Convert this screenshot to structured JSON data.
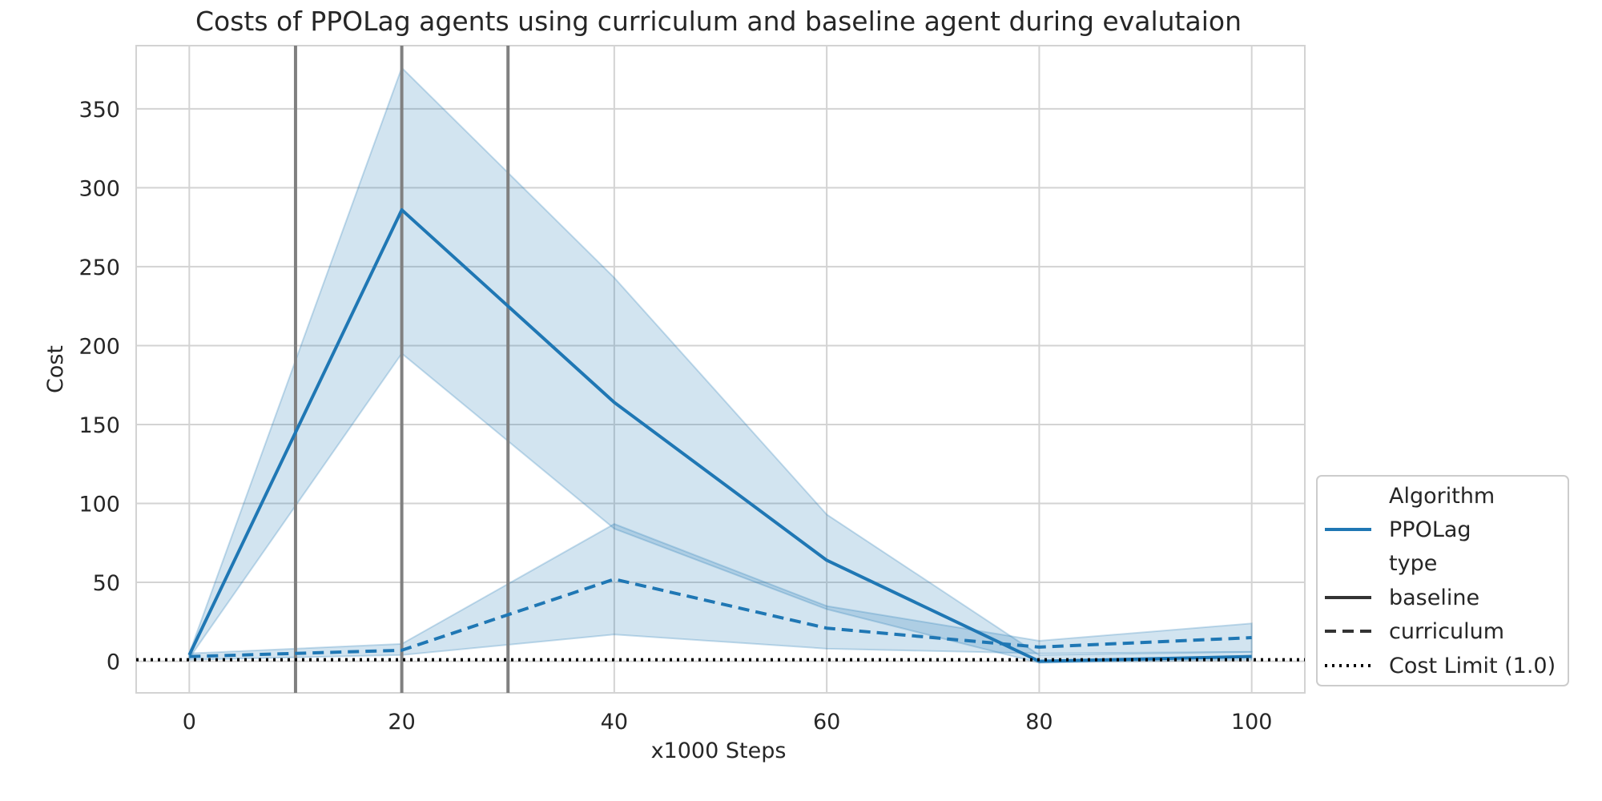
{
  "chart_data": {
    "type": "line",
    "title": "Costs of PPOLag agents using curriculum and baseline agent during evalutaion",
    "xlabel": "x1000 Steps",
    "ylabel": "Cost",
    "xlim": [
      -5,
      105
    ],
    "ylim": [
      -20,
      390
    ],
    "xticks": [
      0,
      20,
      40,
      60,
      80,
      100
    ],
    "yticks": [
      0,
      50,
      100,
      150,
      200,
      250,
      300,
      350
    ],
    "grid": true,
    "legend_placement": "lower-right",
    "colors": {
      "series": "#1f77b4",
      "band": "#1f77b4",
      "vline": "#808080",
      "limit": "#000000",
      "legend_key": "#333333"
    },
    "series": [
      {
        "algorithm": "PPOLag",
        "type": "baseline",
        "style": "solid",
        "x": [
          0,
          20,
          40,
          60,
          80,
          100
        ],
        "y": [
          4,
          286,
          164,
          64,
          0,
          3
        ],
        "lower": [
          2,
          195,
          84,
          33,
          -1,
          1
        ],
        "upper": [
          5,
          376,
          243,
          93,
          4,
          6
        ]
      },
      {
        "algorithm": "PPOLag",
        "type": "curriculum",
        "style": "dashed",
        "x": [
          0,
          20,
          40,
          60,
          80,
          100
        ],
        "y": [
          3,
          7,
          52,
          21,
          9,
          15
        ],
        "lower": [
          1,
          4,
          17,
          8,
          5,
          6
        ],
        "upper": [
          5,
          11,
          87,
          35,
          13,
          24
        ]
      }
    ],
    "reference_lines": {
      "vertical_x": [
        10,
        20,
        30
      ],
      "cost_limit_y": 1.0
    },
    "legend": {
      "header_algorithm": "Algorithm",
      "algorithm_entry": "PPOLag",
      "header_type": "type",
      "type_entries": [
        "baseline",
        "curriculum"
      ],
      "limit_entry": "Cost Limit (1.0)"
    }
  }
}
